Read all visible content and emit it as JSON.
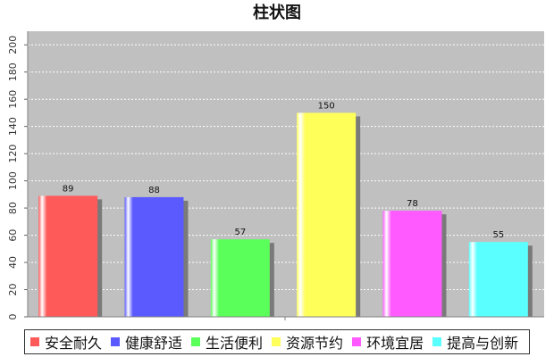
{
  "chart_data": {
    "type": "bar",
    "title": "柱状图",
    "categories": [
      "安全耐久",
      "健康舒适",
      "生活便利",
      "资源节约",
      "环境宜居",
      "提高与创新"
    ],
    "values": [
      89,
      88,
      57,
      150,
      78,
      55
    ],
    "colors": [
      "#ff5a5a",
      "#5a5aff",
      "#5aff5a",
      "#ffff5a",
      "#ff5aff",
      "#5affff"
    ],
    "ylim": [
      0,
      210
    ],
    "yticks": [
      0,
      20,
      40,
      60,
      80,
      100,
      120,
      140,
      160,
      180,
      200
    ],
    "grid": true,
    "legend_position": "bottom",
    "plot_background": "#c0c0c0",
    "data_labels": true
  }
}
